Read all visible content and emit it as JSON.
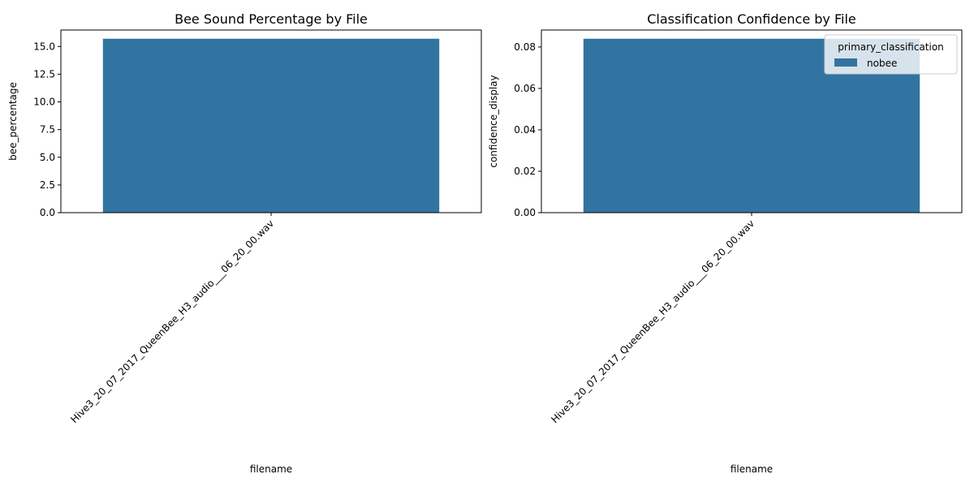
{
  "chart_data": [
    {
      "type": "bar",
      "title": "Bee Sound Percentage by File",
      "xlabel": "filename",
      "ylabel": "bee_percentage",
      "categories": [
        "Hive3_20_07_2017_QueenBee_H3_audio___06_20_00.wav"
      ],
      "values": [
        15.7
      ],
      "ylim": [
        0,
        16.485
      ],
      "yticks": [
        "0.0",
        "2.5",
        "5.0",
        "7.5",
        "10.0",
        "12.5",
        "15.0"
      ],
      "bar_color": "#3274a1",
      "grid": false,
      "legend": null
    },
    {
      "type": "bar",
      "title": "Classification Confidence by File",
      "xlabel": "filename",
      "ylabel": "confidence_display",
      "categories": [
        "Hive3_20_07_2017_QueenBee_H3_audio___06_20_00.wav"
      ],
      "series": [
        {
          "name": "nobee",
          "values": [
            0.084
          ]
        }
      ],
      "values": [
        0.084
      ],
      "ylim": [
        0,
        0.0882
      ],
      "yticks": [
        "0.00",
        "0.02",
        "0.04",
        "0.06",
        "0.08"
      ],
      "bar_color": "#3274a1",
      "grid": false,
      "legend": {
        "title": "primary_classification",
        "placement": "top-right",
        "entries": [
          "nobee"
        ]
      }
    }
  ]
}
